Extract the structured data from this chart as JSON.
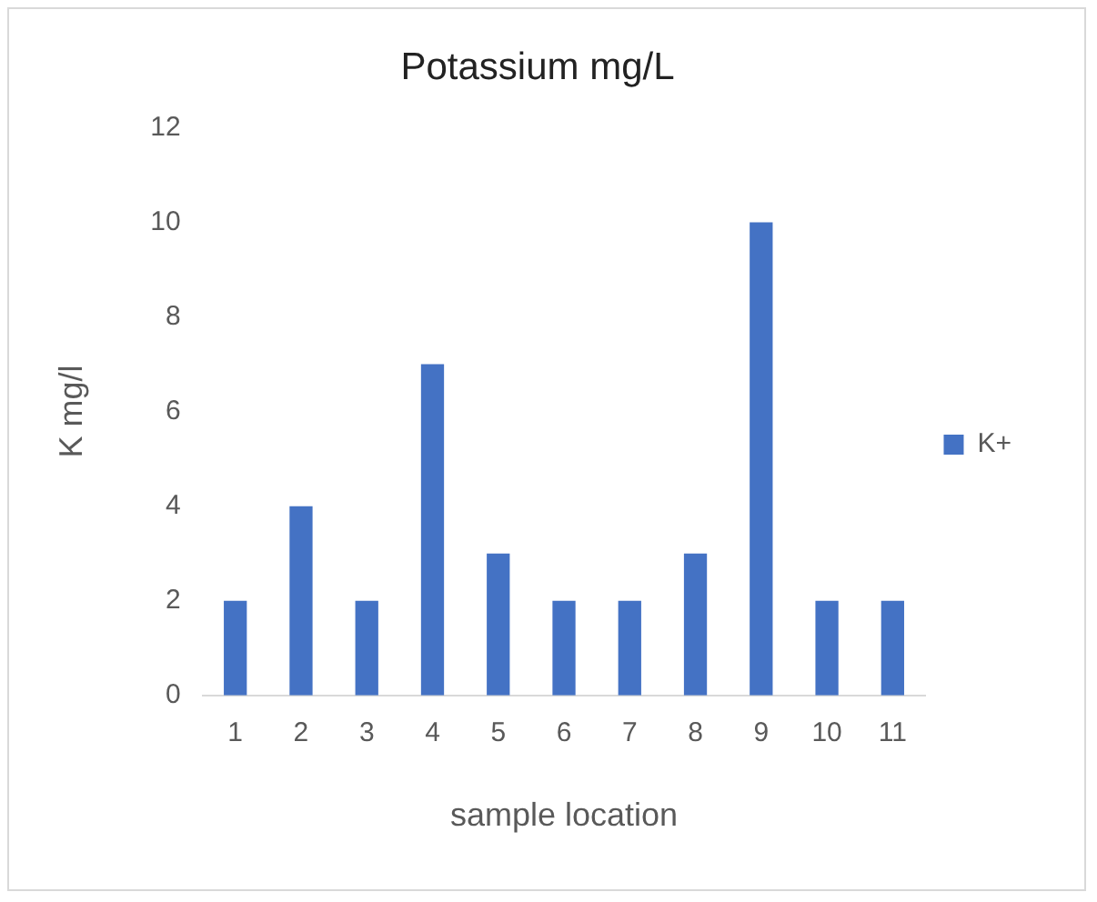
{
  "chart_data": {
    "type": "bar",
    "title": "Potassium mg/L",
    "xlabel": "sample location",
    "ylabel": "K mg/l",
    "categories": [
      "1",
      "2",
      "3",
      "4",
      "5",
      "6",
      "7",
      "8",
      "9",
      "10",
      "11"
    ],
    "series": [
      {
        "name": "K+",
        "color": "#4472c4",
        "values": [
          2,
          4,
          2,
          7,
          3,
          2,
          2,
          3,
          10,
          2,
          2
        ]
      }
    ],
    "ylim": [
      0,
      12
    ],
    "yticks": [
      0,
      2,
      4,
      6,
      8,
      10,
      12
    ],
    "grid": false,
    "legend": "right"
  }
}
